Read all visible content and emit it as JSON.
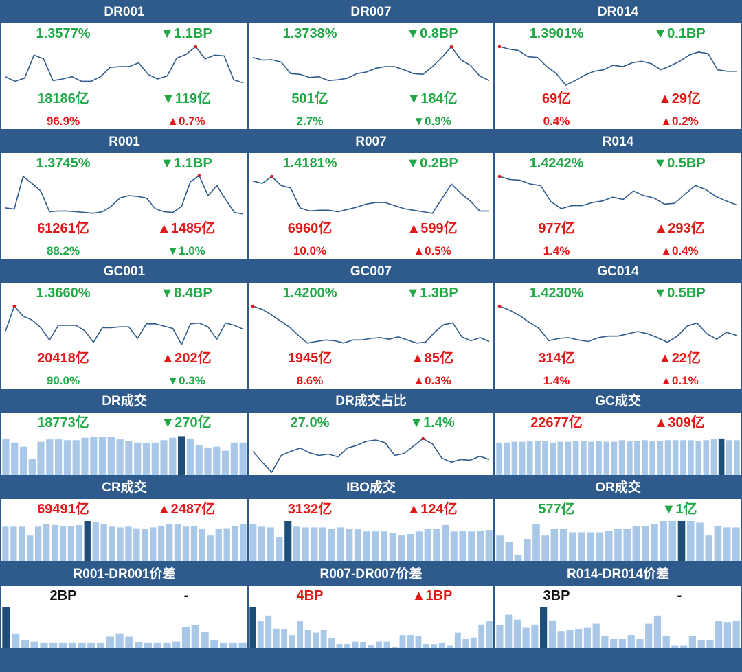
{
  "colors": {
    "header_bg": "#2e5a8c",
    "rise": "#e01818",
    "fall": "#1fa845",
    "line": "#2e5a8c",
    "bar": "#a9c8e8",
    "bar_highlight": "#1f4e79"
  },
  "panels": [
    {
      "title": "DR001",
      "rate": {
        "text": "1.3577%",
        "dir": "neg"
      },
      "rate_chg": {
        "text": "▼1.1BP",
        "dir": "neg"
      },
      "volume": {
        "text": "18186亿",
        "dir": "neg"
      },
      "volume_chg": {
        "text": "▼119亿",
        "dir": "neg"
      },
      "share": {
        "text": "96.9%",
        "dir": "pos"
      },
      "share_chg": {
        "text": "▲0.7%",
        "dir": "pos"
      }
    },
    {
      "title": "DR007",
      "rate": {
        "text": "1.3738%",
        "dir": "neg"
      },
      "rate_chg": {
        "text": "▼0.8BP",
        "dir": "neg"
      },
      "volume": {
        "text": "501亿",
        "dir": "neg"
      },
      "volume_chg": {
        "text": "▼184亿",
        "dir": "neg"
      },
      "share": {
        "text": "2.7%",
        "dir": "neg"
      },
      "share_chg": {
        "text": "▼0.9%",
        "dir": "neg"
      }
    },
    {
      "title": "DR014",
      "rate": {
        "text": "1.3901%",
        "dir": "neg"
      },
      "rate_chg": {
        "text": "▼0.1BP",
        "dir": "neg"
      },
      "volume": {
        "text": "69亿",
        "dir": "pos"
      },
      "volume_chg": {
        "text": "▲29亿",
        "dir": "pos"
      },
      "share": {
        "text": "0.4%",
        "dir": "pos"
      },
      "share_chg": {
        "text": "▲0.2%",
        "dir": "pos"
      }
    },
    {
      "title": "R001",
      "rate": {
        "text": "1.3745%",
        "dir": "neg"
      },
      "rate_chg": {
        "text": "▼1.1BP",
        "dir": "neg"
      },
      "volume": {
        "text": "61261亿",
        "dir": "pos"
      },
      "volume_chg": {
        "text": "▲1485亿",
        "dir": "pos"
      },
      "share": {
        "text": "88.2%",
        "dir": "neg"
      },
      "share_chg": {
        "text": "▼1.0%",
        "dir": "neg"
      }
    },
    {
      "title": "R007",
      "rate": {
        "text": "1.4181%",
        "dir": "neg"
      },
      "rate_chg": {
        "text": "▼0.2BP",
        "dir": "neg"
      },
      "volume": {
        "text": "6960亿",
        "dir": "pos"
      },
      "volume_chg": {
        "text": "▲599亿",
        "dir": "pos"
      },
      "share": {
        "text": "10.0%",
        "dir": "pos"
      },
      "share_chg": {
        "text": "▲0.5%",
        "dir": "pos"
      }
    },
    {
      "title": "R014",
      "rate": {
        "text": "1.4242%",
        "dir": "neg"
      },
      "rate_chg": {
        "text": "▼0.5BP",
        "dir": "neg"
      },
      "volume": {
        "text": "977亿",
        "dir": "pos"
      },
      "volume_chg": {
        "text": "▲293亿",
        "dir": "pos"
      },
      "share": {
        "text": "1.4%",
        "dir": "pos"
      },
      "share_chg": {
        "text": "▲0.4%",
        "dir": "pos"
      }
    },
    {
      "title": "GC001",
      "rate": {
        "text": "1.3660%",
        "dir": "neg"
      },
      "rate_chg": {
        "text": "▼8.4BP",
        "dir": "neg"
      },
      "volume": {
        "text": "20418亿",
        "dir": "pos"
      },
      "volume_chg": {
        "text": "▲202亿",
        "dir": "pos"
      },
      "share": {
        "text": "90.0%",
        "dir": "neg"
      },
      "share_chg": {
        "text": "▼0.3%",
        "dir": "neg"
      }
    },
    {
      "title": "GC007",
      "rate": {
        "text": "1.4200%",
        "dir": "neg"
      },
      "rate_chg": {
        "text": "▼1.3BP",
        "dir": "neg"
      },
      "volume": {
        "text": "1945亿",
        "dir": "pos"
      },
      "volume_chg": {
        "text": "▲85亿",
        "dir": "pos"
      },
      "share": {
        "text": "8.6%",
        "dir": "pos"
      },
      "share_chg": {
        "text": "▲0.3%",
        "dir": "pos"
      }
    },
    {
      "title": "GC014",
      "rate": {
        "text": "1.4230%",
        "dir": "neg"
      },
      "rate_chg": {
        "text": "▼0.5BP",
        "dir": "neg"
      },
      "volume": {
        "text": "314亿",
        "dir": "pos"
      },
      "volume_chg": {
        "text": "▲22亿",
        "dir": "pos"
      },
      "share": {
        "text": "1.4%",
        "dir": "pos"
      },
      "share_chg": {
        "text": "▲0.1%",
        "dir": "pos"
      }
    },
    {
      "title": "DR成交",
      "value": {
        "text": "18773亿",
        "dir": "neg"
      },
      "change": {
        "text": "▼270亿",
        "dir": "neg"
      }
    },
    {
      "title": "DR成交占比",
      "value": {
        "text": "27.0%",
        "dir": "neg"
      },
      "change": {
        "text": "▼1.4%",
        "dir": "neg"
      }
    },
    {
      "title": "GC成交",
      "value": {
        "text": "22677亿",
        "dir": "pos"
      },
      "change": {
        "text": "▲309亿",
        "dir": "pos"
      }
    },
    {
      "title": "CR成交",
      "value": {
        "text": "69491亿",
        "dir": "pos"
      },
      "change": {
        "text": "▲2487亿",
        "dir": "pos"
      }
    },
    {
      "title": "IBO成交",
      "value": {
        "text": "3132亿",
        "dir": "pos"
      },
      "change": {
        "text": "▲124亿",
        "dir": "pos"
      }
    },
    {
      "title": "OR成交",
      "value": {
        "text": "577亿",
        "dir": "neg"
      },
      "change": {
        "text": "▼1亿",
        "dir": "neg"
      }
    },
    {
      "title": "R001-DR001价差",
      "value": {
        "text": "2BP",
        "dir": "neu"
      },
      "change": {
        "text": "-",
        "dir": "neu"
      }
    },
    {
      "title": "R007-DR007价差",
      "value": {
        "text": "4BP",
        "dir": "pos"
      },
      "change": {
        "text": "▲1BP",
        "dir": "pos"
      }
    },
    {
      "title": "R014-DR014价差",
      "value": {
        "text": "3BP",
        "dir": "neu"
      },
      "change": {
        "text": "-",
        "dir": "neu"
      }
    }
  ],
  "chart_data": [
    {
      "panel": "DR001",
      "type": "line",
      "values": [
        0.22,
        0.1,
        0.18,
        0.78,
        0.68,
        0.12,
        0.16,
        0.22,
        0.1,
        0.1,
        0.22,
        0.46,
        0.48,
        0.48,
        0.58,
        0.28,
        0.16,
        0.24,
        0.7,
        0.8,
        1.0,
        0.68,
        0.78,
        0.76,
        0.14,
        0.06
      ],
      "highlight_index": 20
    },
    {
      "panel": "DR007",
      "type": "line",
      "values": [
        0.72,
        0.65,
        0.66,
        0.6,
        0.3,
        0.28,
        0.2,
        0.22,
        0.12,
        0.14,
        0.18,
        0.3,
        0.34,
        0.44,
        0.48,
        0.48,
        0.4,
        0.3,
        0.28,
        0.48,
        0.72,
        1.0,
        0.66,
        0.52,
        0.24,
        0.12
      ],
      "highlight_index": 21
    },
    {
      "panel": "DR014",
      "type": "line",
      "values": [
        1.0,
        0.94,
        0.9,
        0.74,
        0.72,
        0.48,
        0.3,
        0.0,
        0.12,
        0.26,
        0.36,
        0.4,
        0.52,
        0.48,
        0.58,
        0.62,
        0.56,
        0.4,
        0.5,
        0.62,
        0.78,
        0.86,
        0.82,
        0.4,
        0.36,
        0.36
      ],
      "highlight_index": 0
    },
    {
      "panel": "R001",
      "type": "line",
      "values": [
        0.18,
        0.15,
        1.0,
        0.82,
        0.62,
        0.08,
        0.1,
        0.1,
        0.08,
        0.06,
        0.04,
        0.08,
        0.22,
        0.44,
        0.5,
        0.48,
        0.44,
        0.16,
        0.08,
        0.06,
        0.22,
        0.86,
        1.02,
        0.5,
        0.76,
        0.4,
        0.06,
        0.02
      ],
      "highlight_index": 22
    },
    {
      "panel": "R007",
      "type": "line",
      "values": [
        0.88,
        0.82,
        1.0,
        0.76,
        0.7,
        0.18,
        0.1,
        0.12,
        0.12,
        0.08,
        0.14,
        0.2,
        0.28,
        0.32,
        0.32,
        0.24,
        0.16,
        0.12,
        0.08,
        0.04,
        0.42,
        0.8,
        0.56,
        0.36,
        0.1,
        0.1
      ],
      "highlight_index": 2
    },
    {
      "panel": "R014",
      "type": "line",
      "values": [
        1.0,
        0.92,
        0.9,
        0.8,
        0.76,
        0.34,
        0.16,
        0.24,
        0.24,
        0.32,
        0.36,
        0.46,
        0.4,
        0.62,
        0.5,
        0.44,
        0.28,
        0.3,
        0.54,
        0.76,
        0.66,
        0.48,
        0.36,
        0.26
      ],
      "highlight_index": 0
    },
    {
      "panel": "GC001",
      "type": "line",
      "values": [
        0.35,
        1.0,
        0.74,
        0.64,
        0.44,
        0.12,
        0.5,
        0.5,
        0.5,
        0.36,
        0.06,
        0.44,
        0.44,
        0.46,
        0.46,
        0.16,
        0.54,
        0.54,
        0.48,
        0.42,
        0.0,
        0.54,
        0.56,
        0.46,
        0.14,
        0.56,
        0.5,
        0.4
      ],
      "highlight_index": 1
    },
    {
      "panel": "GC007",
      "type": "line",
      "values": [
        1.0,
        0.92,
        0.78,
        0.62,
        0.46,
        0.24,
        0.04,
        0.08,
        0.12,
        0.1,
        0.04,
        0.12,
        0.12,
        0.16,
        0.18,
        0.14,
        0.2,
        0.12,
        0.04,
        0.06,
        0.32,
        0.52,
        0.56,
        0.2,
        0.1,
        0.18,
        0.08
      ],
      "highlight_index": 0
    },
    {
      "panel": "GC014",
      "type": "line",
      "values": [
        1.0,
        0.9,
        0.76,
        0.58,
        0.42,
        0.1,
        0.16,
        0.18,
        0.12,
        0.08,
        0.18,
        0.22,
        0.22,
        0.28,
        0.34,
        0.28,
        0.18,
        0.06,
        0.22,
        0.48,
        0.56,
        0.28,
        0.14,
        0.32,
        0.24
      ],
      "highlight_index": 0
    },
    {
      "panel": "DR成交",
      "type": "bar",
      "values": [
        0.9,
        0.8,
        0.7,
        0.4,
        0.82,
        0.88,
        0.88,
        0.86,
        0.86,
        0.92,
        0.94,
        0.94,
        0.94,
        0.88,
        0.84,
        0.8,
        0.78,
        0.8,
        0.86,
        0.92,
        0.96,
        0.9,
        0.74,
        0.68,
        0.7,
        0.6,
        0.8,
        0.8
      ],
      "highlight_index": 20
    },
    {
      "panel": "DR成交占比",
      "type": "line",
      "values": [
        0.62,
        0.3,
        0.0,
        0.5,
        0.62,
        0.72,
        0.58,
        0.5,
        0.54,
        0.46,
        0.72,
        0.8,
        0.92,
        0.96,
        0.88,
        0.5,
        0.56,
        0.78,
        1.0,
        0.84,
        0.42,
        0.3,
        0.38,
        0.36,
        0.48,
        0.38
      ],
      "highlight_index": 18
    },
    {
      "panel": "GC成交",
      "type": "bar",
      "values": [
        0.8,
        0.8,
        0.82,
        0.82,
        0.84,
        0.84,
        0.84,
        0.8,
        0.82,
        0.82,
        0.84,
        0.84,
        0.82,
        0.84,
        0.82,
        0.82,
        0.86,
        0.84,
        0.84,
        0.86,
        0.84,
        0.84,
        0.86,
        0.86,
        0.86,
        0.86,
        0.84,
        0.86,
        0.88,
        0.9,
        0.86,
        0.86
      ],
      "highlight_index": 29
    },
    {
      "panel": "CR成交",
      "type": "bar",
      "values": [
        0.86,
        0.86,
        0.86,
        0.64,
        0.86,
        0.92,
        0.9,
        0.88,
        0.88,
        0.9,
        1.0,
        0.98,
        0.92,
        0.86,
        0.84,
        0.86,
        0.82,
        0.8,
        0.84,
        0.88,
        0.92,
        0.92,
        0.86,
        0.88,
        0.8,
        0.64,
        0.8,
        0.82,
        0.88,
        0.92
      ],
      "highlight_index": 10
    },
    {
      "panel": "IBO成交",
      "type": "bar",
      "values": [
        0.92,
        0.86,
        0.84,
        0.6,
        1.0,
        0.86,
        0.84,
        0.84,
        0.84,
        0.8,
        0.84,
        0.8,
        0.8,
        0.74,
        0.74,
        0.74,
        0.7,
        0.64,
        0.68,
        0.74,
        0.8,
        0.8,
        0.9,
        0.74,
        0.76,
        0.74,
        0.76,
        0.78
      ],
      "highlight_index": 4
    },
    {
      "panel": "OR成交",
      "type": "bar",
      "values": [
        0.64,
        0.48,
        0.16,
        0.56,
        0.92,
        0.64,
        0.8,
        0.8,
        0.72,
        0.72,
        0.72,
        0.72,
        0.76,
        0.8,
        0.8,
        0.88,
        0.88,
        0.92,
        1.0,
        1.0,
        1.0,
        1.0,
        0.96,
        0.64,
        0.88,
        0.84,
        0.84
      ],
      "highlight_index": 20
    },
    {
      "panel": "R001-DR001价差",
      "type": "bar",
      "values": [
        1.0,
        0.36,
        0.2,
        0.16,
        0.12,
        0.12,
        0.12,
        0.12,
        0.12,
        0.12,
        0.12,
        0.28,
        0.36,
        0.28,
        0.14,
        0.12,
        0.12,
        0.12,
        0.16,
        0.52,
        0.56,
        0.4,
        0.2,
        0.12,
        0.12,
        0.12
      ],
      "highlight_index": 0
    },
    {
      "panel": "R007-DR007价差",
      "type": "bar",
      "values": [
        1.0,
        0.66,
        0.8,
        0.48,
        0.46,
        0.32,
        0.66,
        0.44,
        0.38,
        0.44,
        0.24,
        0.1,
        0.1,
        0.16,
        0.14,
        0.08,
        0.16,
        0.16,
        0.02,
        0.32,
        0.32,
        0.3,
        0.1,
        0.1,
        0.12,
        0.06,
        0.38,
        0.22,
        0.26,
        0.58,
        0.66
      ],
      "highlight_index": 0
    },
    {
      "panel": "R014-DR014价差",
      "type": "bar",
      "values": [
        0.56,
        0.82,
        0.7,
        0.5,
        0.58,
        1.0,
        0.68,
        0.42,
        0.44,
        0.46,
        0.5,
        0.6,
        0.3,
        0.22,
        0.22,
        0.32,
        0.22,
        0.6,
        0.8,
        0.3,
        0.06,
        0.06,
        0.3,
        0.2,
        0.2,
        0.66,
        0.64,
        0.66
      ],
      "highlight_index": 5
    }
  ]
}
